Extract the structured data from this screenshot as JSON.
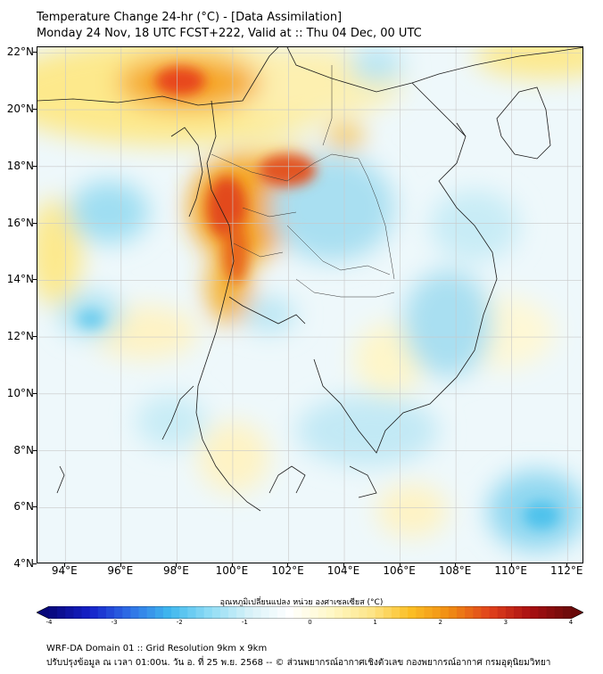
{
  "header": {
    "title_line1": "Temperature Change 24-hr (°C) - [Data Assimilation]",
    "title_line2": "Monday 24 Nov, 18 UTC FCST+222, Valid at :: Thu 04 Dec, 00 UTC"
  },
  "map": {
    "lat_labels": [
      "22°N",
      "20°N",
      "18°N",
      "16°N",
      "14°N",
      "12°N",
      "10°N",
      "8°N",
      "6°N",
      "4°N"
    ],
    "lon_labels": [
      "94°E",
      "96°E",
      "98°E",
      "100°E",
      "102°E",
      "104°E",
      "106°E",
      "108°E",
      "110°E",
      "112°E"
    ],
    "lat_values": [
      22,
      20,
      18,
      16,
      14,
      12,
      10,
      8,
      6,
      4
    ],
    "lon_values": [
      94,
      96,
      98,
      100,
      102,
      104,
      106,
      108,
      110,
      112
    ],
    "extent": {
      "lon_min": 93.0,
      "lon_max": 112.6,
      "lat_min": 4.0,
      "lat_max": 22.2
    },
    "gridlines": true
  },
  "colorbar": {
    "title": "อุณหภูมิเปลี่ยนแปลง หน่วย องศาเซลเซียส (°C)",
    "ticks": [
      "-4",
      "-3",
      "-2",
      "-1",
      "0",
      "1",
      "2",
      "3",
      "4"
    ],
    "min": -4,
    "max": 4,
    "colors": [
      "#08087a",
      "#1520c8",
      "#2f6fe6",
      "#3fb8ee",
      "#8fdcf5",
      "#d8f2f8",
      "#ffffff",
      "#fff8c8",
      "#fde68a",
      "#fbbf24",
      "#f08a12",
      "#e0401c",
      "#a80f12",
      "#6a0a0a"
    ]
  },
  "fields": {
    "warm_regions": [
      {
        "lon": 98.0,
        "lat": 21.0,
        "anomaly": 3.0
      },
      {
        "lon": 99.8,
        "lat": 16.2,
        "anomaly": 3.2
      },
      {
        "lon": 101.5,
        "lat": 17.6,
        "anomaly": 3.0
      },
      {
        "lon": 100.2,
        "lat": 14.6,
        "anomaly": 2.4
      },
      {
        "lon": 96.0,
        "lat": 19.5,
        "anomaly": 1.6
      },
      {
        "lon": 108.5,
        "lat": 22.0,
        "anomaly": 1.8
      }
    ],
    "cool_regions": [
      {
        "lon": 95.5,
        "lat": 16.2,
        "anomaly": -1.2
      },
      {
        "lon": 104.0,
        "lat": 16.5,
        "anomaly": -1.0
      },
      {
        "lon": 106.8,
        "lat": 12.5,
        "anomaly": -1.0
      },
      {
        "lon": 110.9,
        "lat": 5.7,
        "anomaly": -1.4
      },
      {
        "lon": 95.0,
        "lat": 12.3,
        "anomaly": -0.9
      },
      {
        "lon": 103.2,
        "lat": 9.5,
        "anomaly": -0.8
      }
    ]
  },
  "footer": {
    "line1": "WRF-DA Domain 01 :: Grid Resolution 9km x 9km",
    "line2": "ปรับปรุงข้อมูล ณ เวลา 01:00น. วัน อ. ที่ 25 พ.ย. 2568 -- © ส่วนพยากรณ์อากาศเชิงตัวเลข กองพยากรณ์อากาศ กรมอุตุนิยมวิทยา"
  }
}
